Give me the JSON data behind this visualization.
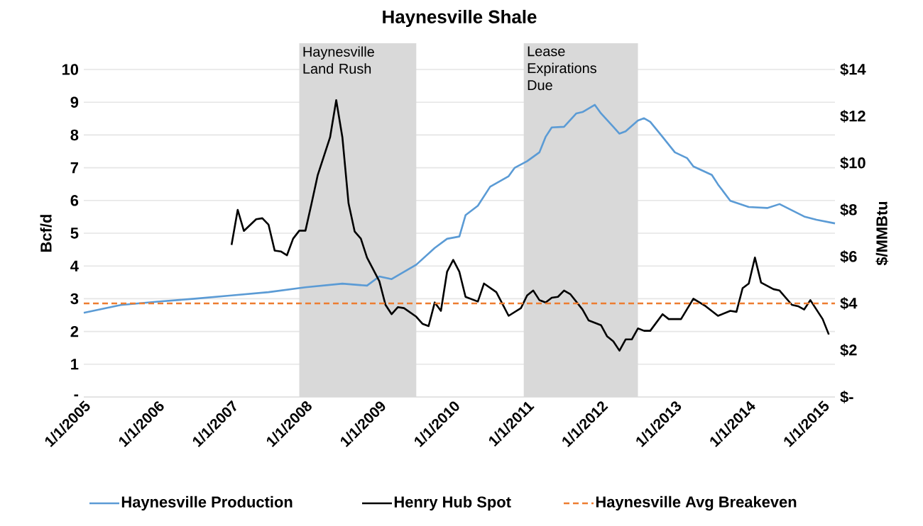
{
  "chart_data": {
    "type": "line",
    "title": "Haynesville Shale",
    "ylabel": "Bcf/d",
    "y2label": "$/MMBtu",
    "xlim": [
      "2005-01",
      "2015-03"
    ],
    "xticks": [
      {
        "value": "2005-01-01",
        "label": "1/1/2005"
      },
      {
        "value": "2006-01-01",
        "label": "1/1/2006"
      },
      {
        "value": "2007-01-01",
        "label": "1/1/2007"
      },
      {
        "value": "2008-01-01",
        "label": "1/1/2008"
      },
      {
        "value": "2009-01-01",
        "label": "1/1/2009"
      },
      {
        "value": "2010-01-01",
        "label": "1/1/2010"
      },
      {
        "value": "2011-01-01",
        "label": "1/1/2011"
      },
      {
        "value": "2012-01-01",
        "label": "1/1/2012"
      },
      {
        "value": "2013-01-01",
        "label": "1/1/2013"
      },
      {
        "value": "2014-01-01",
        "label": "1/1/2014"
      },
      {
        "value": "2015-01-01",
        "label": "1/1/2015"
      }
    ],
    "ylim": [
      0,
      10
    ],
    "yticks": [
      {
        "value": 0,
        "label": "-"
      },
      1,
      2,
      3,
      4,
      5,
      6,
      7,
      8,
      9,
      10
    ],
    "y2lim": [
      0,
      14
    ],
    "y2ticks": [
      {
        "value": 0,
        "label": "$-"
      },
      {
        "value": 2,
        "label": "$2"
      },
      {
        "value": 4,
        "label": "$4"
      },
      {
        "value": 6,
        "label": "$6"
      },
      {
        "value": 8,
        "label": "$8"
      },
      {
        "value": 10,
        "label": "$10"
      },
      {
        "value": 12,
        "label": "$12"
      },
      {
        "value": 14,
        "label": "$14"
      }
    ],
    "grid": "y",
    "legend": "bottom",
    "bands": [
      {
        "axis": "x",
        "from": "2007-12",
        "to": "2009-07",
        "label": "Haynesville Land Rush",
        "color": "#d9d9d9"
      },
      {
        "axis": "x",
        "from": "2010-12-15",
        "to": "2012-07",
        "label": "Lease Expirations Due",
        "color": "#d9d9d9"
      }
    ],
    "series": [
      {
        "name": "Haynesville Production",
        "color": "#5b9bd5",
        "x": [
          "2005-01",
          "2005-07",
          "2006-01",
          "2006-07",
          "2007-01",
          "2007-07",
          "2008-01",
          "2008-07",
          "2008-11",
          "2009-01",
          "2009-03",
          "2009-05",
          "2009-07",
          "2009-10",
          "2009-12",
          "2010-02",
          "2010-03",
          "2010-05",
          "2010-07",
          "2010-10",
          "2010-11",
          "2011-01",
          "2011-03",
          "2011-04",
          "2011-05",
          "2011-07",
          "2011-09",
          "2011-10",
          "2011-12",
          "2012-01",
          "2012-03",
          "2012-04",
          "2012-05",
          "2012-07",
          "2012-08",
          "2012-09",
          "2012-11",
          "2013-01",
          "2013-03",
          "2013-04",
          "2013-07",
          "2013-08",
          "2013-10",
          "2014-01",
          "2014-04",
          "2014-06",
          "2014-08",
          "2014-10",
          "2014-12",
          "2015-03"
        ],
        "values": [
          2.57,
          2.81,
          2.91,
          3.0,
          3.1,
          3.2,
          3.35,
          3.46,
          3.4,
          3.68,
          3.6,
          3.82,
          4.04,
          4.55,
          4.83,
          4.9,
          5.55,
          5.84,
          6.42,
          6.74,
          7.0,
          7.2,
          7.47,
          7.94,
          8.23,
          8.25,
          8.66,
          8.7,
          8.92,
          8.66,
          8.25,
          8.04,
          8.11,
          8.44,
          8.51,
          8.4,
          7.94,
          7.47,
          7.29,
          7.04,
          6.78,
          6.49,
          5.99,
          5.8,
          5.77,
          5.89,
          5.7,
          5.51,
          5.41,
          5.3
        ]
      },
      {
        "name": "Henry Hub Spot",
        "color": "#000000",
        "axis": "y2",
        "x": [
          "2007-01",
          "2007-02",
          "2007-03",
          "2007-05",
          "2007-06",
          "2007-07",
          "2007-08",
          "2007-09",
          "2007-10",
          "2007-11",
          "2007-12",
          "2008-01",
          "2008-02",
          "2008-03",
          "2008-05",
          "2008-06",
          "2008-07",
          "2008-08",
          "2008-09",
          "2008-10",
          "2008-11",
          "2009-01",
          "2009-02",
          "2009-03",
          "2009-04",
          "2009-05",
          "2009-07",
          "2009-08",
          "2009-09",
          "2009-10",
          "2009-11",
          "2009-12",
          "2010-01",
          "2010-02",
          "2010-03",
          "2010-05",
          "2010-06",
          "2010-08",
          "2010-10",
          "2010-12",
          "2011-01",
          "2011-02",
          "2011-03",
          "2011-04",
          "2011-05",
          "2011-06",
          "2011-07",
          "2011-08",
          "2011-10",
          "2011-11",
          "2012-01",
          "2012-02",
          "2012-03",
          "2012-04",
          "2012-05",
          "2012-06",
          "2012-07",
          "2012-08",
          "2012-09",
          "2012-11",
          "2012-12",
          "2013-02",
          "2013-04",
          "2013-06",
          "2013-08",
          "2013-10",
          "2013-11",
          "2013-12",
          "2014-01",
          "2014-02",
          "2014-03",
          "2014-05",
          "2014-06",
          "2014-08",
          "2014-09",
          "2014-10",
          "2014-11",
          "2015-01",
          "2015-02"
        ],
        "values": [
          6.5,
          8.0,
          7.1,
          7.6,
          7.64,
          7.37,
          6.26,
          6.22,
          6.06,
          6.77,
          7.11,
          7.11,
          8.28,
          9.49,
          11.1,
          12.69,
          11.1,
          8.28,
          7.07,
          6.77,
          5.96,
          4.95,
          3.94,
          3.54,
          3.84,
          3.8,
          3.43,
          3.13,
          3.03,
          4.04,
          3.68,
          5.35,
          5.86,
          5.35,
          4.28,
          4.08,
          4.85,
          4.48,
          3.47,
          3.8,
          4.34,
          4.55,
          4.14,
          4.04,
          4.24,
          4.28,
          4.55,
          4.4,
          3.74,
          3.27,
          3.07,
          2.59,
          2.38,
          1.98,
          2.46,
          2.46,
          2.93,
          2.83,
          2.83,
          3.54,
          3.33,
          3.33,
          4.2,
          3.88,
          3.47,
          3.68,
          3.64,
          4.65,
          4.85,
          5.96,
          4.89,
          4.61,
          4.55,
          3.94,
          3.88,
          3.74,
          4.14,
          3.33,
          2.67
        ]
      },
      {
        "name": "Haynesville Avg Breakeven",
        "color": "#ed7d31",
        "axis": "y2",
        "line_style": "dashed",
        "x": [
          "2005-01",
          "2015-03"
        ],
        "values": [
          4,
          4
        ]
      }
    ]
  }
}
